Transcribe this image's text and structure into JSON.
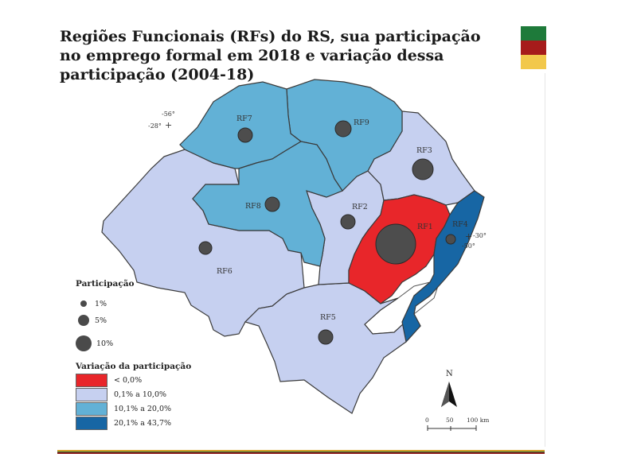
{
  "title": "Regiões Funcionais (RFs) do RS, sua participação no emprego formal em 2018 e variação dessa participação (2004-18)",
  "flag_colors": [
    "#1e7a3a",
    "#a61b1b",
    "#f2c84b"
  ],
  "legend": {
    "participation_title": "Participação",
    "sizes": [
      {
        "label": "1%",
        "value": 1
      },
      {
        "label": "5%",
        "value": 5
      },
      {
        "label": "10%",
        "value": 10
      }
    ],
    "variation_title": "Variação da participação",
    "classes": [
      {
        "label": "< 0,0%",
        "color": "#e8262a"
      },
      {
        "label": "0,1% a 10,0%",
        "color": "#c6d0f0"
      },
      {
        "label": "10,1% a 20,0%",
        "color": "#62b1d6"
      },
      {
        "label": "20,1% a 43,7%",
        "color": "#1766a4"
      }
    ]
  },
  "regions": [
    {
      "name": "RF1",
      "class": 0
    },
    {
      "name": "RF2",
      "class": 1
    },
    {
      "name": "RF3",
      "class": 1
    },
    {
      "name": "RF4",
      "class": 3
    },
    {
      "name": "RF5",
      "class": 1
    },
    {
      "name": "RF6",
      "class": 1
    },
    {
      "name": "RF7",
      "class": 2
    },
    {
      "name": "RF8",
      "class": 2
    },
    {
      "name": "RF9",
      "class": 2
    }
  ],
  "coords": {
    "nw_lon": "-56°",
    "nw_lat": "-28°",
    "e_lat": "-30°",
    "e_lon": "-50°"
  },
  "north_label": "N",
  "scale": {
    "ticks": [
      "0",
      "50",
      "100 km"
    ]
  }
}
